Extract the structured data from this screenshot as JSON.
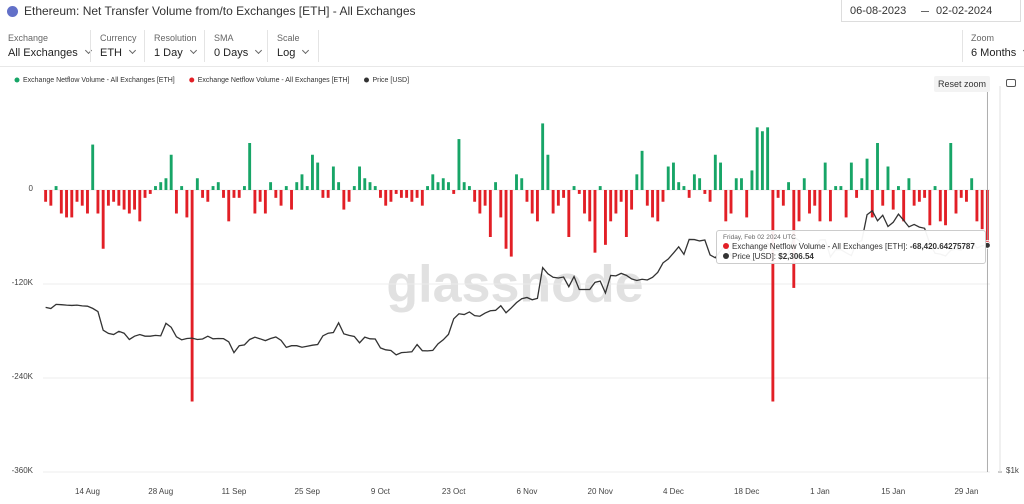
{
  "header": {
    "title": "Ethereum: Net Transfer Volume from/to Exchanges [ETH] - All Exchanges",
    "date_from": "06-08-2023",
    "date_to": "02-02-2024"
  },
  "controls": [
    {
      "label": "Exchange",
      "value": "All Exchanges"
    },
    {
      "label": "Currency",
      "value": "ETH"
    },
    {
      "label": "Resolution",
      "value": "1 Day"
    },
    {
      "label": "SMA",
      "value": "0 Days"
    },
    {
      "label": "Scale",
      "value": "Log"
    }
  ],
  "zoom": {
    "label": "Zoom",
    "value": "6 Months"
  },
  "reset_zoom": "Reset zoom",
  "chart_data": {
    "type": "bar",
    "watermark": "glassnode",
    "grid": true,
    "y2scale": "log",
    "ylim": [
      -360000,
      120000
    ],
    "yticks": [
      {
        "value": -360000,
        "label": "-360K"
      },
      {
        "value": -240000,
        "label": "-240K"
      },
      {
        "value": -120000,
        "label": "-120K"
      },
      0
    ],
    "y2lim": [
      1000,
      4000
    ],
    "y2ticks": [
      {
        "value": 1000,
        "label": "$1k"
      }
    ],
    "categories": [
      null,
      null,
      null,
      null,
      null,
      null,
      null,
      null,
      "14 Aug",
      null,
      null,
      null,
      null,
      null,
      null,
      null,
      null,
      null,
      null,
      null,
      null,
      null,
      "28 Aug",
      null,
      null,
      null,
      null,
      null,
      null,
      null,
      null,
      null,
      null,
      null,
      null,
      null,
      "11 Sep",
      null,
      null,
      null,
      null,
      null,
      null,
      null,
      null,
      null,
      null,
      null,
      null,
      null,
      "25 Sep",
      null,
      null,
      null,
      null,
      null,
      null,
      null,
      null,
      null,
      null,
      null,
      null,
      null,
      "9 Oct",
      null,
      null,
      null,
      null,
      null,
      null,
      null,
      null,
      null,
      null,
      null,
      null,
      null,
      "23 Oct",
      null,
      null,
      null,
      null,
      null,
      null,
      null,
      null,
      null,
      null,
      null,
      null,
      null,
      "6 Nov",
      null,
      null,
      null,
      null,
      null,
      null,
      null,
      null,
      null,
      null,
      null,
      null,
      null,
      "20 Nov",
      null,
      null,
      null,
      null,
      null,
      null,
      null,
      null,
      null,
      null,
      null,
      null,
      null,
      "4 Dec",
      null,
      null,
      null,
      null,
      null,
      null,
      null,
      null,
      null,
      null,
      null,
      null,
      null,
      "18 Dec",
      null,
      null,
      null,
      null,
      null,
      null,
      null,
      null,
      null,
      null,
      null,
      null,
      null,
      "1 Jan",
      null,
      null,
      null,
      null,
      null,
      null,
      null,
      null,
      null,
      null,
      null,
      null,
      null,
      "15 Jan",
      null,
      null,
      null,
      null,
      null,
      null,
      null,
      null,
      null,
      null,
      null,
      null,
      null,
      "29 Jan",
      null,
      null,
      null,
      null
    ],
    "series": [
      {
        "name": "Exchange Netflow Volume - All Exchanges [ETH]",
        "color": "#17a567",
        "values": [
          null,
          null,
          5000,
          null,
          null,
          null,
          null,
          null,
          null,
          58000,
          null,
          null,
          null,
          null,
          null,
          null,
          null,
          null,
          null,
          null,
          null,
          5000,
          10000,
          15000,
          45000,
          null,
          5000,
          null,
          null,
          15000,
          null,
          null,
          5000,
          10000,
          null,
          null,
          null,
          null,
          5000,
          60000,
          null,
          null,
          null,
          10000,
          null,
          null,
          5000,
          null,
          10000,
          20000,
          5000,
          45000,
          35000,
          null,
          null,
          30000,
          10000,
          null,
          null,
          5000,
          30000,
          15000,
          10000,
          5000,
          null,
          null,
          null,
          null,
          null,
          null,
          null,
          null,
          null,
          5000,
          20000,
          10000,
          15000,
          10000,
          null,
          65000,
          10000,
          5000,
          null,
          null,
          null,
          null,
          10000,
          null,
          null,
          null,
          20000,
          15000,
          null,
          null,
          null,
          85000,
          45000,
          null,
          null,
          null,
          null,
          5000,
          null,
          null,
          null,
          null,
          5000,
          null,
          null,
          null,
          null,
          null,
          null,
          20000,
          50000,
          null,
          null,
          null,
          null,
          30000,
          35000,
          10000,
          5000,
          null,
          20000,
          15000,
          null,
          null,
          45000,
          35000,
          null,
          null,
          15000,
          15000,
          null,
          25000,
          80000,
          75000,
          80000,
          null,
          null,
          null,
          10000,
          null,
          null,
          15000,
          null,
          null,
          null,
          35000,
          null,
          5000,
          5000,
          null,
          35000,
          null,
          15000,
          40000,
          null,
          60000,
          null,
          30000,
          null,
          5000,
          null,
          15000,
          null,
          null,
          null,
          null,
          5000,
          null,
          null,
          60000,
          null,
          null,
          null,
          15000,
          null,
          null,
          null
        ]
      },
      {
        "name": "Exchange Netflow Volume - All Exchanges [ETH]",
        "color": "#e21f26",
        "values": [
          -15000,
          -20000,
          null,
          -30000,
          -35000,
          -35000,
          -15000,
          -20000,
          -30000,
          null,
          -30000,
          -75000,
          -20000,
          -15000,
          -20000,
          -25000,
          -30000,
          -25000,
          -40000,
          -10000,
          -5000,
          null,
          null,
          null,
          null,
          -30000,
          null,
          -35000,
          -270000,
          null,
          -10000,
          -15000,
          null,
          null,
          -10000,
          -40000,
          -10000,
          -10000,
          null,
          null,
          -30000,
          -15000,
          -30000,
          null,
          -10000,
          -20000,
          null,
          -25000,
          null,
          null,
          null,
          null,
          null,
          -10000,
          -10000,
          null,
          null,
          -25000,
          -15000,
          null,
          null,
          null,
          null,
          null,
          -10000,
          -20000,
          -15000,
          -5000,
          -10000,
          -10000,
          -15000,
          -10000,
          -20000,
          null,
          null,
          null,
          null,
          null,
          -5000,
          null,
          null,
          null,
          -15000,
          -30000,
          -20000,
          -60000,
          null,
          -35000,
          -75000,
          -85000,
          null,
          null,
          -15000,
          -30000,
          -40000,
          null,
          null,
          -30000,
          -20000,
          -10000,
          -60000,
          null,
          -5000,
          -30000,
          -40000,
          -80000,
          null,
          -70000,
          -40000,
          -30000,
          -15000,
          -60000,
          -25000,
          null,
          null,
          -20000,
          -35000,
          -40000,
          -15000,
          null,
          null,
          null,
          null,
          -10000,
          null,
          null,
          -5000,
          -15000,
          null,
          null,
          -40000,
          -30000,
          null,
          null,
          -35000,
          null,
          null,
          null,
          null,
          -270000,
          -10000,
          -20000,
          null,
          -125000,
          -40000,
          null,
          -30000,
          -20000,
          -40000,
          null,
          -40000,
          null,
          null,
          -35000,
          null,
          -10000,
          null,
          null,
          -35000,
          null,
          -20000,
          null,
          -25000,
          null,
          -40000,
          null,
          -20000,
          -15000,
          -10000,
          -45000,
          null,
          -40000,
          -45000,
          null,
          -30000,
          -10000,
          -15000,
          null,
          -40000,
          -50000,
          -68420.64275787
        ]
      },
      {
        "name": "Price [USD]",
        "color": "#333333",
        "type": "line",
        "axis": "y2",
        "values": [
          1835,
          1827,
          1855,
          1853,
          1850,
          1848,
          1850,
          1845,
          1843,
          1828,
          1807,
          1687,
          1667,
          1660,
          1680,
          1668,
          1630,
          1650,
          1660,
          1650,
          1650,
          1655,
          1652,
          1730,
          1705,
          1646,
          1628,
          1636,
          1638,
          1630,
          1633,
          1650,
          1634,
          1636,
          1635,
          1616,
          1553,
          1593,
          1598,
          1630,
          1644,
          1634,
          1623,
          1636,
          1645,
          1625,
          1583,
          1593,
          1593,
          1584,
          1590,
          1596,
          1600,
          1652,
          1668,
          1672,
          1733,
          1664,
          1655,
          1648,
          1610,
          1644,
          1634,
          1633,
          1580,
          1569,
          1565,
          1540,
          1553,
          1555,
          1558,
          1600,
          1564,
          1563,
          1566,
          1604,
          1628,
          1661,
          1759,
          1792,
          1787,
          1804,
          1780,
          1776,
          1797,
          1812,
          1815,
          1846,
          1799,
          1831,
          1867,
          1894,
          1903,
          1887,
          1897,
          2125,
          2077,
          2050,
          2045,
          2052,
          1980,
          2056,
          1960,
          1960,
          1960,
          2012,
          2021,
          1935,
          2064,
          2061,
          2080,
          2065,
          2038,
          2026,
          2035,
          2030,
          2050,
          2088,
          2162,
          2193,
          2242,
          2294,
          2231,
          2357,
          2356,
          2344,
          2352,
          2226,
          2203,
          2260,
          2315,
          2220,
          2229,
          2197,
          2218,
          2178,
          2201,
          2238,
          2324,
          2271,
          2264,
          2232,
          2233,
          2381,
          2346,
          2301,
          2291,
          2282,
          2352,
          2355,
          2211,
          2269,
          2270,
          2244,
          2221,
          2329,
          2348,
          2582,
          2620,
          2525,
          2577,
          2472,
          2511,
          2588,
          2529,
          2469,
          2491,
          2467,
          2456,
          2320,
          2240,
          2233,
          2218,
          2265,
          2275,
          2266,
          2318,
          2345,
          2283,
          2303,
          2306.54
        ]
      }
    ],
    "tooltip": {
      "date": "Friday, Feb 02 2024 UTC",
      "items": [
        {
          "label": "Exchange Netflow Volume - All Exchanges [ETH]:",
          "value": "-68,420.64275787"
        },
        {
          "label": "Price [USD]:",
          "value": "$2,306.54"
        }
      ]
    }
  }
}
